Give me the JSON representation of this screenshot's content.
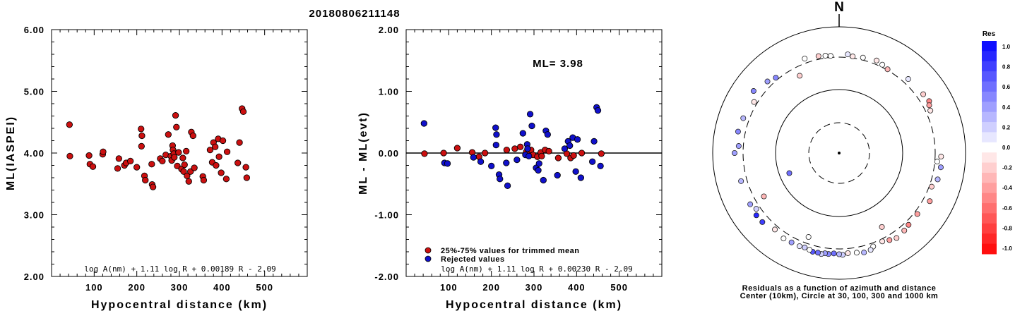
{
  "title": "20180806211148",
  "colors": {
    "red": "#cc1010",
    "blue": "#1010cc",
    "frame": "#000000"
  },
  "panel1": {
    "ylabel": "ML(IASPEI)",
    "xlabel": "Hypocentral distance (km)",
    "formula": "log A(nm) + 1.11 log R + 0.00189 R - 2.09",
    "xticks": [
      "100",
      "200",
      "300",
      "400",
      "500"
    ],
    "yticks": [
      "2.00",
      "3.00",
      "4.00",
      "5.00",
      "6.00"
    ]
  },
  "panel2": {
    "ylabel": "ML - ML(evt)",
    "xlabel": "Hypocentral distance (km)",
    "ml_text": "ML= 3.98",
    "legend_used": "25%-75% values for trimmed mean",
    "legend_rejected": "Rejected values",
    "formula": "log A(nm) + 1.11 log R + 0.00230 R - 2.09",
    "xticks": [
      "100",
      "200",
      "300",
      "400",
      "500"
    ],
    "yticks": [
      "-2.00",
      "-1.00",
      "0.00",
      "1.00",
      "2.00"
    ]
  },
  "panel3": {
    "north": "N",
    "caption1": "Residuals as a function of azimuth and distance",
    "caption2": "Center (10km), Circle at 30, 100, 300 and 1000 km",
    "scale_title": "Res",
    "scale_ticks": [
      "1.0",
      "0.8",
      "0.6",
      "0.4",
      "0.2",
      "0.0",
      "-0.2",
      "-0.4",
      "-0.6",
      "-0.8",
      "-1.0"
    ]
  },
  "chart_data": [
    {
      "type": "scatter",
      "title": "20180806211148",
      "xlabel": "Hypocentral distance (km)",
      "ylabel": "ML(IASPEI)",
      "xlim": [
        0,
        600
      ],
      "ylim": [
        2.0,
        6.0
      ],
      "series": [
        {
          "x": [
            42,
            43,
            88,
            90,
            97,
            120,
            121,
            155,
            158,
            171,
            175,
            185,
            200,
            210,
            212,
            211,
            218,
            220,
            235,
            236,
            238,
            255,
            260,
            268,
            274,
            280,
            282,
            284,
            285,
            287,
            288,
            291,
            293,
            295,
            298,
            305,
            308,
            310,
            312,
            316,
            318,
            322,
            326,
            328,
            332,
            335,
            355,
            357,
            372,
            377,
            380,
            384,
            386,
            391,
            393,
            398,
            402,
            410,
            412,
            437,
            441,
            447,
            450,
            456,
            458
          ],
          "y": [
            4.46,
            3.95,
            3.96,
            3.82,
            3.78,
            3.98,
            4.02,
            3.75,
            3.91,
            3.8,
            3.84,
            3.87,
            3.77,
            4.39,
            4.28,
            4.11,
            3.63,
            3.56,
            3.82,
            3.49,
            3.45,
            3.91,
            3.87,
            3.97,
            4.3,
            3.95,
            3.88,
            4.12,
            4.05,
            3.99,
            3.93,
            4.61,
            4.42,
            3.79,
            4.01,
            3.74,
            3.92,
            3.7,
            3.81,
            4.03,
            3.63,
            3.54,
            3.7,
            4.34,
            4.28,
            3.76,
            3.62,
            3.56,
            4.05,
            3.85,
            4.17,
            4.1,
            3.8,
            4.23,
            3.94,
            3.68,
            4.2,
            3.58,
            4.02,
            3.84,
            4.17,
            4.72,
            4.67,
            3.77,
            3.6
          ]
        }
      ]
    },
    {
      "type": "scatter",
      "xlabel": "Hypocentral distance (km)",
      "ylabel": "ML - ML(evt)",
      "xlim": [
        0,
        600
      ],
      "ylim": [
        -2.0,
        2.0
      ],
      "series": [
        {
          "name": "25%-75% values for trimmed mean",
          "x": [
            43,
            88,
            120,
            155,
            171,
            185,
            236,
            255,
            268,
            282,
            287,
            293,
            298,
            308,
            316,
            318,
            326,
            335,
            357,
            377,
            386,
            393,
            412,
            458
          ],
          "y": [
            -0.01,
            0.0,
            0.08,
            0.01,
            -0.06,
            0.0,
            0.05,
            0.07,
            0.1,
            0.02,
            0.0,
            0.05,
            -0.03,
            -0.06,
            0.01,
            -0.05,
            0.05,
            0.03,
            -0.08,
            -0.01,
            -0.08,
            -0.04,
            0.0,
            -0.01
          ]
        },
        {
          "name": "Rejected values",
          "x": [
            42,
            90,
            97,
            158,
            175,
            200,
            210,
            212,
            211,
            218,
            220,
            235,
            238,
            260,
            274,
            280,
            284,
            285,
            288,
            291,
            295,
            305,
            310,
            312,
            322,
            328,
            332,
            355,
            372,
            380,
            384,
            391,
            398,
            402,
            410,
            437,
            441,
            447,
            450,
            456
          ],
          "y": [
            0.48,
            -0.16,
            -0.17,
            -0.07,
            -0.14,
            -0.21,
            0.41,
            0.3,
            0.13,
            -0.35,
            -0.42,
            -0.16,
            -0.53,
            -0.11,
            0.32,
            -0.03,
            0.14,
            0.07,
            -0.05,
            0.63,
            0.44,
            -0.24,
            -0.28,
            -0.17,
            -0.44,
            0.36,
            0.3,
            -0.36,
            0.07,
            0.19,
            0.12,
            0.25,
            -0.3,
            0.22,
            -0.4,
            -0.14,
            0.19,
            0.74,
            0.69,
            -0.21
          ]
        }
      ]
    },
    {
      "type": "scatter",
      "title": "Residuals as a function of azimuth and distance",
      "polar": true,
      "rings_km": [
        10,
        30,
        100,
        300,
        1000
      ],
      "colorbar_range": [
        -1.0,
        1.0
      ],
      "series": [
        {
          "name": "stations",
          "azimuth_deg": [
            5,
            8,
            14,
            22,
            26,
            30,
            43,
            55,
            60,
            62,
            65,
            92,
            95,
            98,
            105,
            110,
            118,
            128,
            136,
            140,
            146,
            150,
            154,
            160,
            162,
            166,
            170,
            175,
            178,
            180,
            183,
            186,
            188,
            190,
            192,
            195,
            197,
            200,
            203,
            208,
            213,
            220,
            228,
            233,
            236,
            240,
            254,
            270,
            274,
            282,
            290,
            301,
            306,
            315,
            320,
            333,
            340,
            348,
            352,
            355,
            240,
            200,
            150,
            248
          ],
          "distance_km": [
            340,
            320,
            330,
            350,
            330,
            310,
            370,
            390,
            410,
            380,
            360,
            380,
            330,
            390,
            380,
            330,
            390,
            340,
            350,
            370,
            390,
            360,
            330,
            345,
            380,
            390,
            370,
            360,
            380,
            370,
            360,
            375,
            370,
            390,
            380,
            385,
            370,
            360,
            370,
            370,
            380,
            350,
            400,
            405,
            350,
            390,
            380,
            420,
            360,
            400,
            380,
            340,
            440,
            370,
            330,
            220,
            360,
            340,
            330,
            320,
            220,
            240,
            210,
            70
          ],
          "residual": [
            0.1,
            -0.1,
            0.0,
            -0.1,
            0.0,
            -0.3,
            0.1,
            -0.2,
            -0.5,
            -0.4,
            -0.1,
            -0.1,
            0.0,
            0.4,
            0.3,
            -0.2,
            -0.4,
            -0.4,
            -0.5,
            -0.3,
            -0.2,
            -0.4,
            -0.1,
            0.0,
            0.1,
            0.3,
            0.0,
            -0.1,
            0.2,
            0.3,
            0.6,
            0.5,
            0.4,
            0.2,
            0.6,
            0.7,
            0.0,
            0.2,
            0.1,
            0.4,
            0.0,
            -0.1,
            0.8,
            0.9,
            0.2,
            0.4,
            0.3,
            0.4,
            0.4,
            0.5,
            0.3,
            -0.1,
            0.5,
            0.4,
            0.5,
            -0.2,
            0.0,
            -0.2,
            0.0,
            0.0,
            -0.3,
            0.0,
            -0.2,
            0.6
          ]
        }
      ]
    }
  ]
}
